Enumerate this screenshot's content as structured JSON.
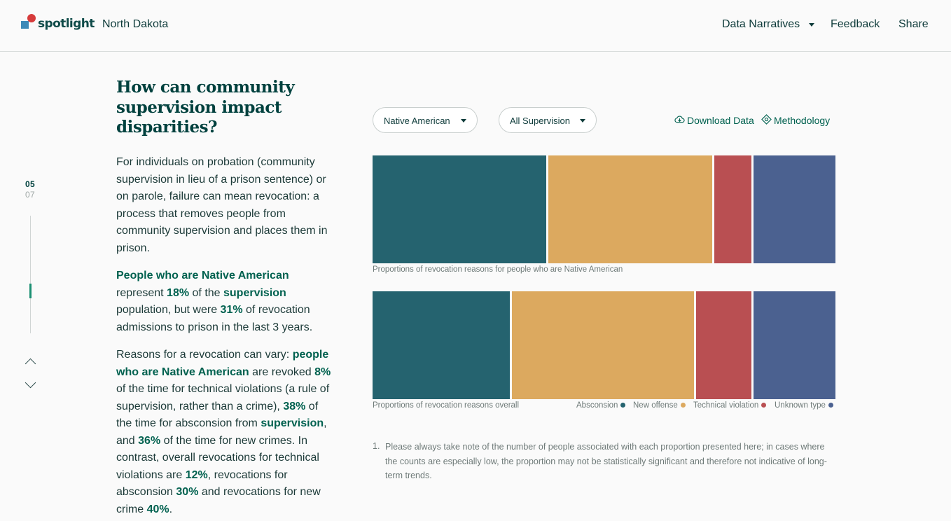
{
  "header": {
    "logo_text": "spotlight",
    "state": "North Dakota",
    "nav": {
      "narratives": "Data Narratives",
      "feedback": "Feedback",
      "share": "Share"
    }
  },
  "section_nav": {
    "current": "05",
    "total": "07"
  },
  "title": "How can community supervision impact disparities?",
  "body": {
    "p1": "For individuals on probation (community supervision in lieu of a prison sentence) or on parole, failure can mean revocation: a process that removes people from community supervision and places them in prison.",
    "p2": {
      "hl1": "People who are Native American",
      "t1": " represent ",
      "hl2": "18%",
      "t2": " of the ",
      "hl3": "supervision",
      "t3": " population, but were ",
      "hl4": "31%",
      "t4": " of revocation admissions to prison in the last 3 years."
    },
    "p3": {
      "t1": "Reasons for a revocation can vary: ",
      "hl1": "people who are Native American",
      "t2": " are revoked ",
      "hl2": "8%",
      "t3": " of the time for technical violations (a rule of supervision, rather than a crime), ",
      "hl3": "38%",
      "t4": " of the time for absconsion from ",
      "hl4": "supervision",
      "t5": ", and ",
      "hl5": "36%",
      "t6": " of the time for new crimes. In contrast, overall revocations for technical violations are ",
      "hl6": "12%",
      "t7": ", revocations for absconsion ",
      "hl7": "30%",
      "t8": " and revocations for new crime ",
      "hl8": "40%",
      "t9": "."
    }
  },
  "controls": {
    "race_select": "Native American",
    "supervision_select": "All Supervision",
    "download": "Download Data",
    "methodology": "Methodology"
  },
  "colors": {
    "absconsion": "#25636f",
    "new_offense": "#dca95f",
    "technical_violation": "#b94f52",
    "unknown_type": "#4b6190"
  },
  "chart_data": [
    {
      "type": "bar",
      "caption": "Proportions of revocation reasons for people who are Native American",
      "segments": [
        {
          "name": "Absconsion",
          "value": 38
        },
        {
          "name": "New offense",
          "value": 36
        },
        {
          "name": "Technical violation",
          "value": 8
        },
        {
          "name": "Unknown type",
          "value": 18
        }
      ]
    },
    {
      "type": "bar",
      "caption": "Proportions of revocation reasons overall",
      "segments": [
        {
          "name": "Absconsion",
          "value": 30
        },
        {
          "name": "New offense",
          "value": 40
        },
        {
          "name": "Technical violation",
          "value": 12
        },
        {
          "name": "Unknown type",
          "value": 18
        }
      ],
      "legend": [
        "Absconsion",
        "New offense",
        "Technical violation",
        "Unknown type"
      ]
    }
  ],
  "footnote": {
    "number": "1.",
    "text": "Please always take note of the number of people associated with each proportion presented here; in cases where the counts are especially low, the proportion may not be statistically significant and therefore not indicative of long-term trends."
  }
}
